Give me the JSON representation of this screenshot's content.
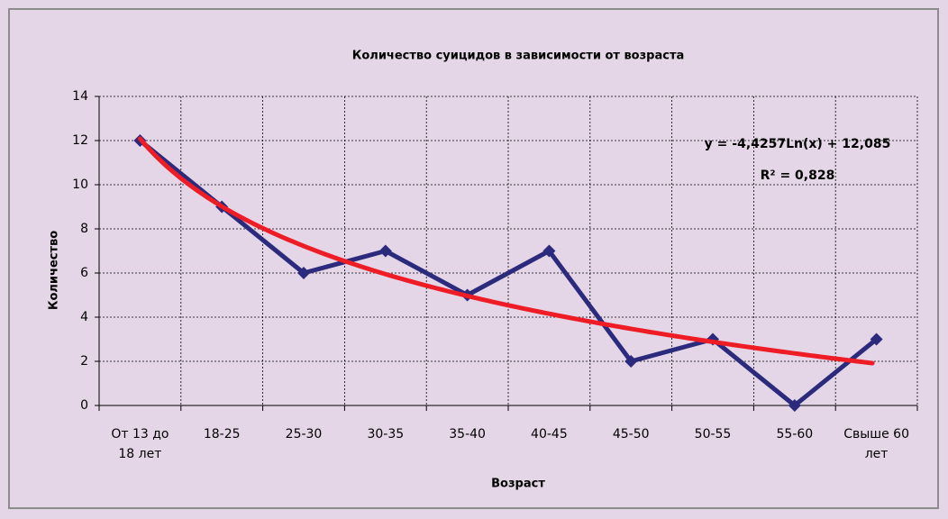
{
  "chart_data": {
    "type": "line",
    "title": "Количество суицидов в зависимости от возраста",
    "x_label": "Возраст",
    "y_label": "Количество",
    "categories": [
      "От 13 до 18 лет",
      "18-25",
      "25-30",
      "30-35",
      "35-40",
      "40-45",
      "45-50",
      "50-55",
      "55-60",
      "Свыше 60 лет"
    ],
    "series": [
      {
        "name": "Количество",
        "color": "#2b2a7d",
        "values": [
          12,
          9,
          6,
          7,
          5,
          7,
          2,
          3,
          0,
          3
        ]
      }
    ],
    "ylim": [
      0,
      14
    ],
    "yticks": [
      0,
      2,
      4,
      6,
      8,
      10,
      12,
      14
    ],
    "grid": true,
    "trendline": {
      "type": "log",
      "color": "#ee1c25",
      "equation": "y = -4,4257Ln(x) + 12,085",
      "r_squared": "R² = 0,828"
    }
  }
}
